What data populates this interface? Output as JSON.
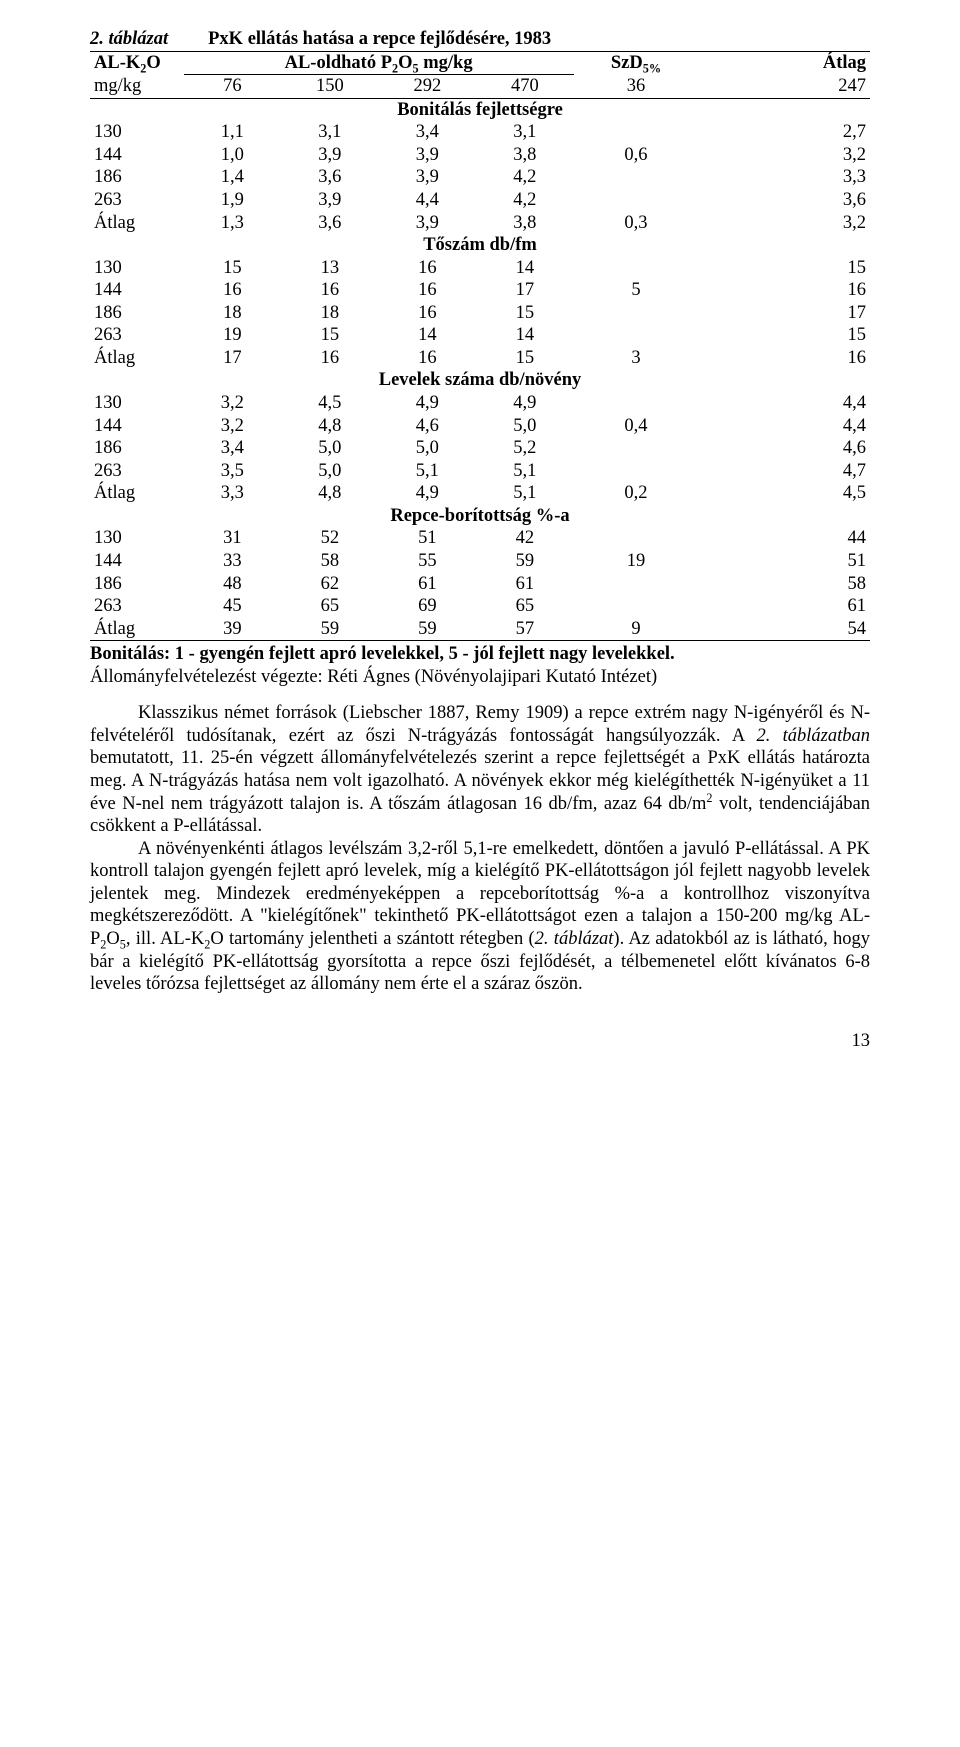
{
  "table_title_lead": "2. táblázat",
  "table_title_rest": "PxK ellátás hatása a repce fejlődésére, 1983",
  "header": {
    "c0_html": "AL-K<span class=\"sub\">2</span>O",
    "p_header_html": "AL-oldható P<span class=\"sub\">2</span>O<span class=\"sub\">5</span> mg/kg",
    "szd_html": "SzD<span class=\"sub\">5%</span>",
    "atlag": "Átlag",
    "sub0": "mg/kg",
    "p_levels": [
      "76",
      "150",
      "292",
      "470"
    ],
    "szd_col": "36",
    "atlag_col": "247"
  },
  "sections": [
    {
      "label": "Bonitálás fejlettségre",
      "rows": [
        {
          "k": "130",
          "v": [
            "1,1",
            "3,1",
            "3,4",
            "3,1",
            "",
            "2,7"
          ]
        },
        {
          "k": "144",
          "v": [
            "1,0",
            "3,9",
            "3,9",
            "3,8",
            "0,6",
            "3,2"
          ]
        },
        {
          "k": "186",
          "v": [
            "1,4",
            "3,6",
            "3,9",
            "4,2",
            "",
            "3,3"
          ]
        },
        {
          "k": "263",
          "v": [
            "1,9",
            "3,9",
            "4,4",
            "4,2",
            "",
            "3,6"
          ]
        },
        {
          "k": "Átlag",
          "v": [
            "1,3",
            "3,6",
            "3,9",
            "3,8",
            "0,3",
            "3,2"
          ]
        }
      ]
    },
    {
      "label": "Tőszám db/fm",
      "rows": [
        {
          "k": "130",
          "v": [
            "15",
            "13",
            "16",
            "14",
            "",
            "15"
          ]
        },
        {
          "k": "144",
          "v": [
            "16",
            "16",
            "16",
            "17",
            "5",
            "16"
          ]
        },
        {
          "k": "186",
          "v": [
            "18",
            "18",
            "16",
            "15",
            "",
            "17"
          ]
        },
        {
          "k": "263",
          "v": [
            "19",
            "15",
            "14",
            "14",
            "",
            "15"
          ]
        },
        {
          "k": "Átlag",
          "v": [
            "17",
            "16",
            "16",
            "15",
            "3",
            "16"
          ]
        }
      ]
    },
    {
      "label": "Levelek száma db/növény",
      "rows": [
        {
          "k": "130",
          "v": [
            "3,2",
            "4,5",
            "4,9",
            "4,9",
            "",
            "4,4"
          ]
        },
        {
          "k": "144",
          "v": [
            "3,2",
            "4,8",
            "4,6",
            "5,0",
            "0,4",
            "4,4"
          ]
        },
        {
          "k": "186",
          "v": [
            "3,4",
            "5,0",
            "5,0",
            "5,2",
            "",
            "4,6"
          ]
        },
        {
          "k": "263",
          "v": [
            "3,5",
            "5,0",
            "5,1",
            "5,1",
            "",
            "4,7"
          ]
        },
        {
          "k": "Átlag",
          "v": [
            "3,3",
            "4,8",
            "4,9",
            "5,1",
            "0,2",
            "4,5"
          ]
        }
      ]
    },
    {
      "label": "Repce-borítottság %-a",
      "rows": [
        {
          "k": "130",
          "v": [
            "31",
            "52",
            "51",
            "42",
            "",
            "44"
          ]
        },
        {
          "k": "144",
          "v": [
            "33",
            "58",
            "55",
            "59",
            "19",
            "51"
          ]
        },
        {
          "k": "186",
          "v": [
            "48",
            "62",
            "61",
            "61",
            "",
            "58"
          ]
        },
        {
          "k": "263",
          "v": [
            "45",
            "65",
            "69",
            "65",
            "",
            "61"
          ]
        },
        {
          "k": "Átlag",
          "v": [
            "39",
            "59",
            "59",
            "57",
            "9",
            "54"
          ]
        }
      ]
    }
  ],
  "footnote1": "Bonitálás: 1 - gyengén fejlett apró levelekkel, 5 - jól fejlett nagy levelekkel.",
  "footnote2": "Állományfelvételezést végezte: Réti Ágnes (Növényolajipari Kutató Intézet)",
  "p1_html": "Klasszikus német források (Liebscher 1887, Remy 1909) a repce extrém nagy N-igényéről és N-felvételéről tudósítanak, ezért az őszi N-trágyázás fontosságát hangsúlyozzák. A <span class=\"italic\">2. táblázatban</span> bemutatott, 11. 25-én végzett állományfelvételezés szerint a repce fejlettségét a PxK ellátás határozta meg. A N-trágyázás hatása nem volt igazolható. A növények ekkor még kielégíthették N-igényüket a 11 éve N-nel nem trágyázott talajon is. A tőszám átlagosan 16 db/fm, azaz 64 db/m<span class=\"sup\">2</span> volt, tendenciájában csökkent a P-ellátással.",
  "p2_html": "A növényenkénti átlagos levélszám 3,2-ről 5,1-re emelkedett, döntően a javuló P-ellátással. A PK kontroll talajon gyengén fejlett apró levelek, míg a kielégítő PK-ellátottságon jól fejlett nagyobb levelek jelentek meg. Mindezek eredményeképpen a repceborítottság %-a a kontrollhoz viszonyítva megkétszereződött. A \"kielégítőnek\" tekinthető PK-ellátottságot ezen a talajon a 150-200 mg/kg AL-P<span class=\"sub\">2</span>O<span class=\"sub\">5</span>, ill. AL-K<span class=\"sub\">2</span>O tartomány jelentheti a szántott rétegben (<span class=\"italic\">2. táblázat</span>). Az adatokból az is látható, hogy bár a kielégítő PK-ellátottság gyorsította a repce őszi fejlődését, a télbemenetel előtt kívánatos 6-8 leveles tőrózsa fejlettséget az állomány nem érte el a száraz őszön.",
  "page_number": "13",
  "col_widths_pct": [
    12,
    12.5,
    12.5,
    12.5,
    12.5,
    16,
    22
  ],
  "text_color": "#000000",
  "background_color": "#ffffff"
}
